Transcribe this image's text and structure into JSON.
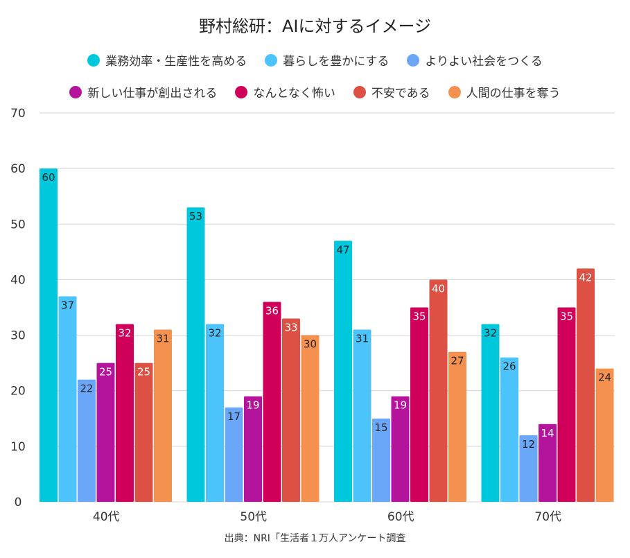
{
  "chart_data": {
    "type": "bar",
    "title": "野村総研：AIに対するイメージ",
    "xlabel": "",
    "ylabel": "",
    "ylim": [
      0,
      70
    ],
    "yticks": [
      0,
      10,
      20,
      30,
      40,
      50,
      60,
      70
    ],
    "grid": true,
    "legend_position": "top",
    "categories": [
      "40代",
      "50代",
      "60代",
      "70代"
    ],
    "series": [
      {
        "name": "業務効率・生産性を高める",
        "color": "#00c8dc",
        "label_color": "#222222",
        "values": [
          60,
          53,
          47,
          32
        ]
      },
      {
        "name": "暮らしを豊かにする",
        "color": "#4cc3fb",
        "label_color": "#222222",
        "values": [
          37,
          32,
          31,
          26
        ]
      },
      {
        "name": "よりよい社会をつくる",
        "color": "#6aa7f8",
        "label_color": "#222222",
        "values": [
          22,
          17,
          15,
          12
        ]
      },
      {
        "name": "新しい仕事が創出される",
        "color": "#b4139c",
        "label_color": "#ffffff",
        "values": [
          25,
          19,
          19,
          14
        ]
      },
      {
        "name": "なんとなく怖い",
        "color": "#d0005a",
        "label_color": "#ffffff",
        "values": [
          32,
          36,
          35,
          35
        ]
      },
      {
        "name": "不安である",
        "color": "#dd5044",
        "label_color": "#ffffff",
        "values": [
          25,
          33,
          40,
          42
        ]
      },
      {
        "name": "人間の仕事を奪う",
        "color": "#f4914f",
        "label_color": "#222222",
        "values": [
          31,
          30,
          27,
          24
        ]
      }
    ],
    "source": "出典：NRI「生活者１万人アンケート調査"
  }
}
